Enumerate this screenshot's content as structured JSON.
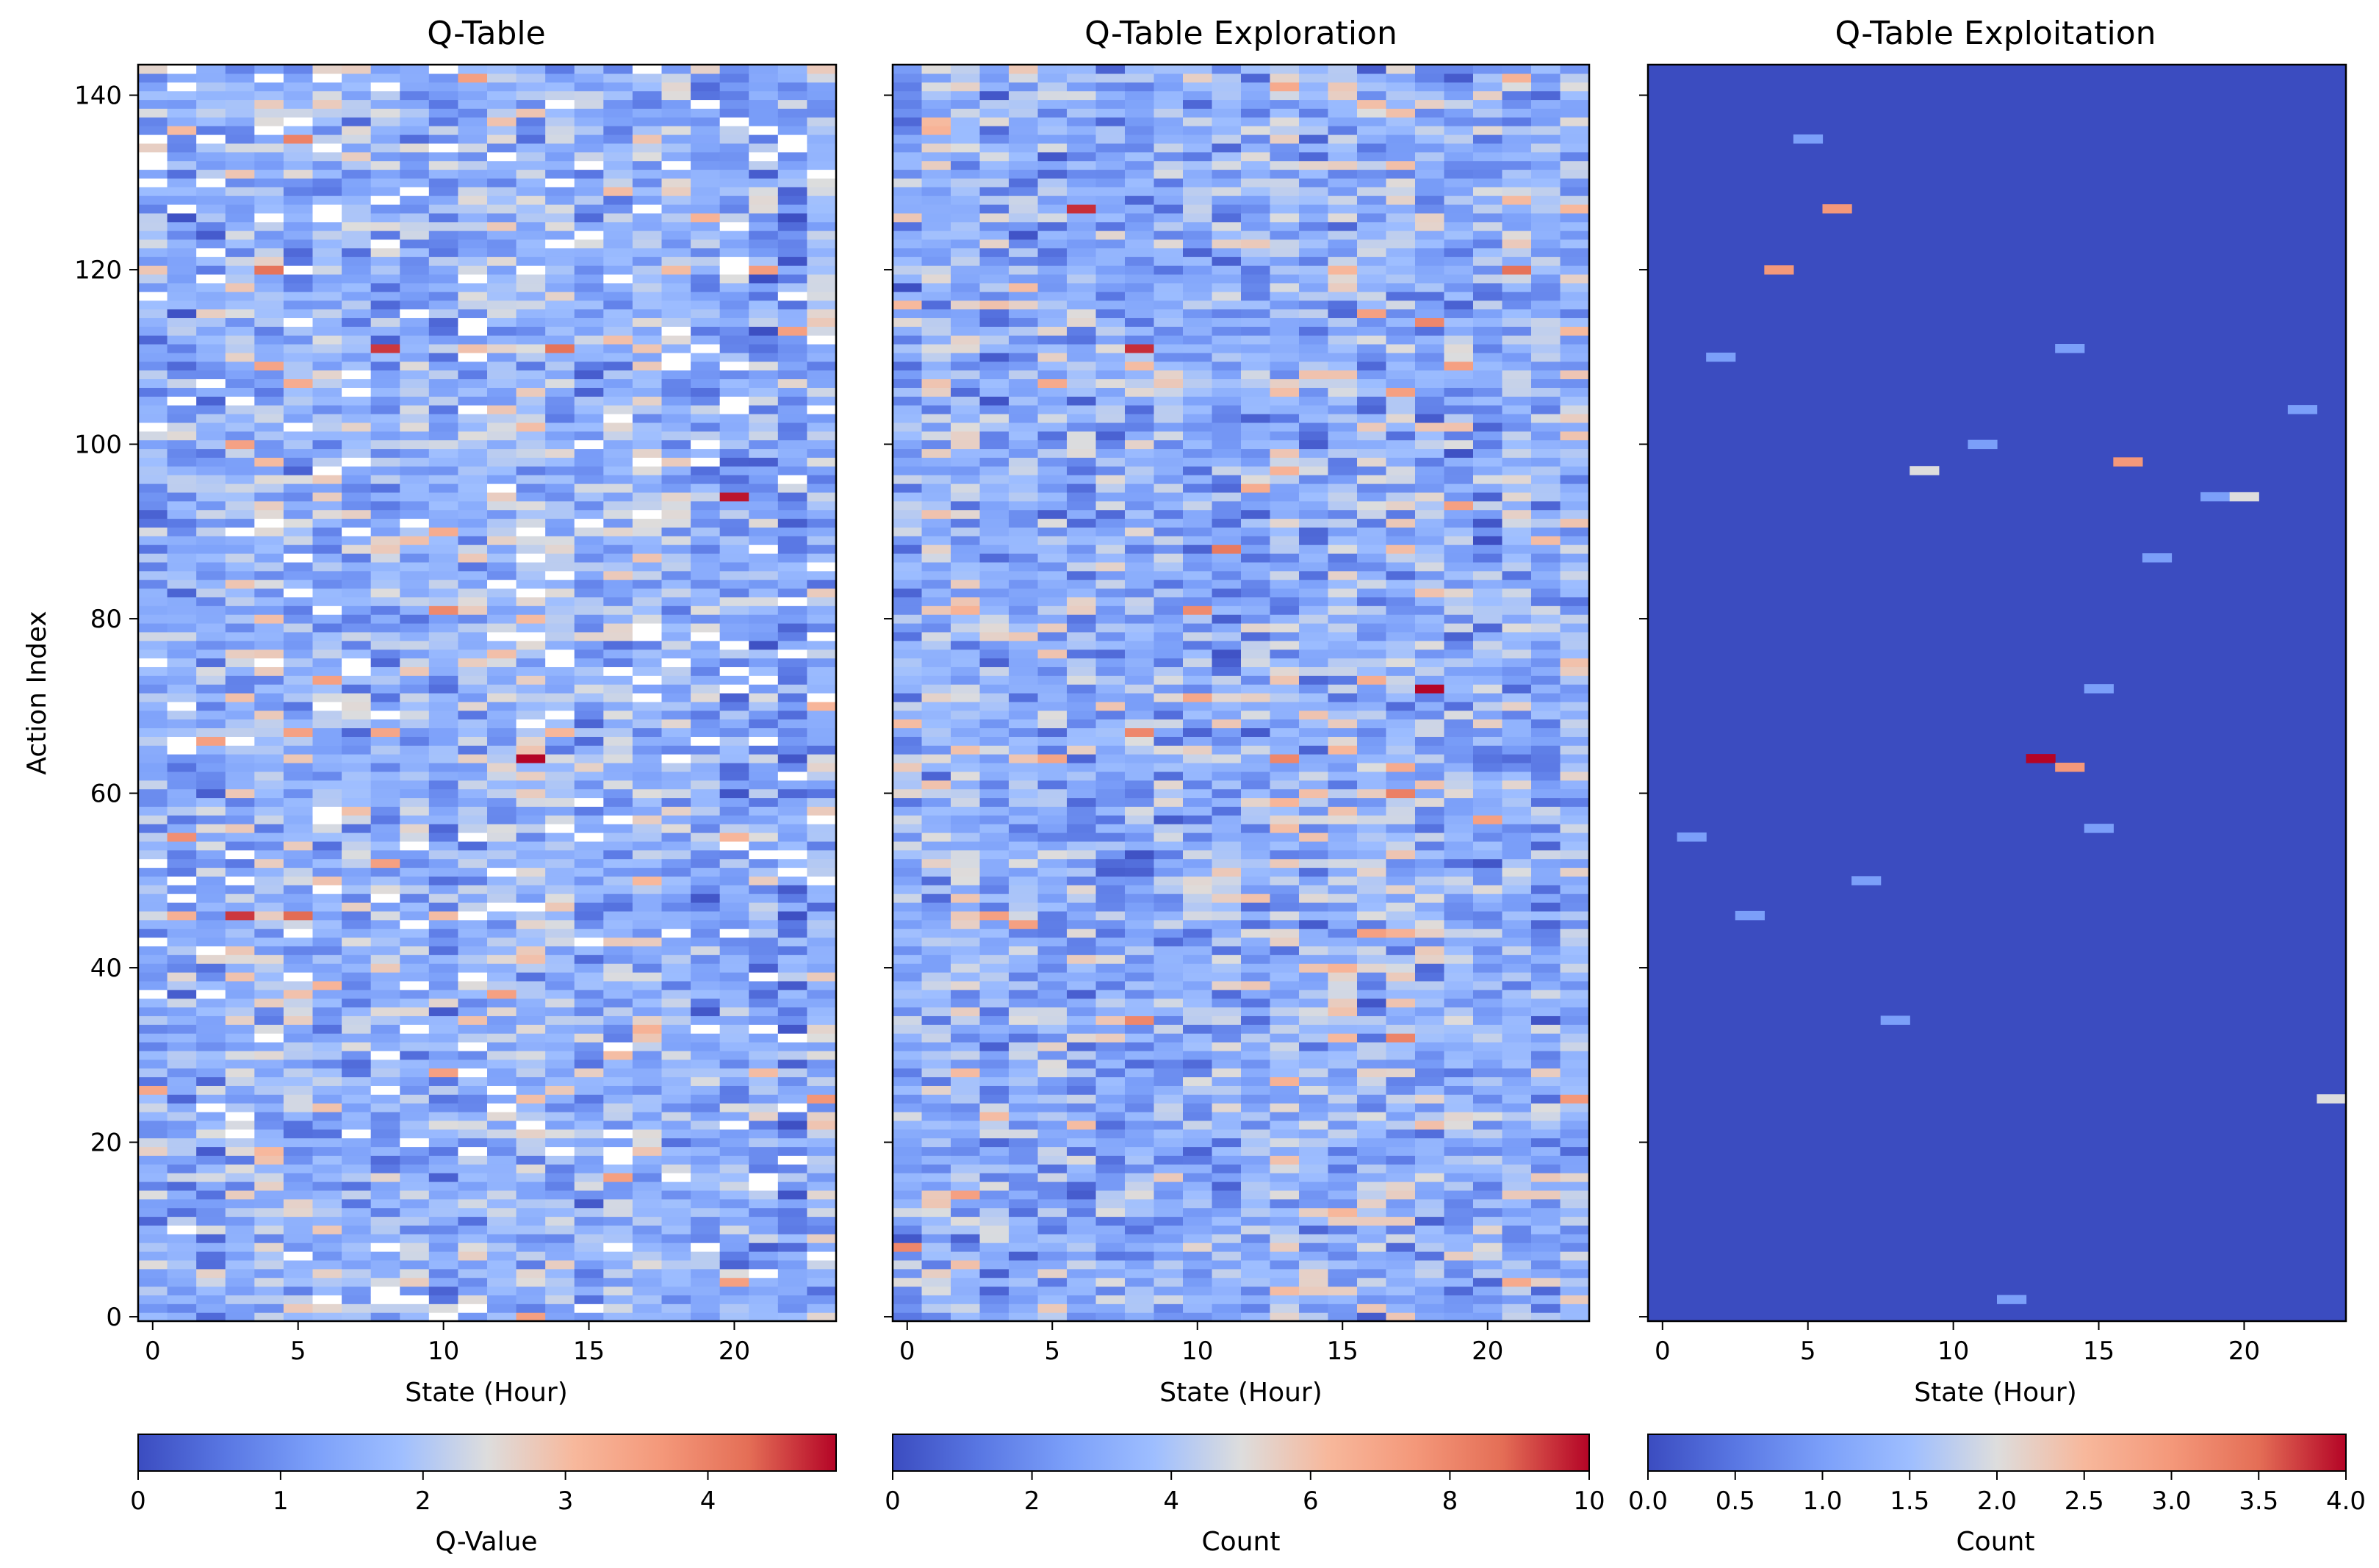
{
  "chart_data": [
    {
      "type": "heatmap",
      "title": "Q-Table",
      "xlabel": "State (Hour)",
      "ylabel": "Action Index",
      "x_range": [
        0,
        23
      ],
      "y_range": [
        0,
        143
      ],
      "xticks": [
        0,
        5,
        10,
        15,
        20
      ],
      "yticks": [
        0,
        20,
        40,
        60,
        80,
        100,
        120,
        140
      ],
      "colormap": "coolwarm",
      "colorbar": {
        "label": "Q-Value",
        "vmin": 0,
        "vmax": 4.9,
        "ticks": [
          0,
          1,
          2,
          3,
          4
        ]
      },
      "hotspots": [
        {
          "x": 13,
          "y": 64,
          "value": 4.9
        },
        {
          "x": 20,
          "y": 94,
          "value": 4.8
        },
        {
          "x": 8,
          "y": 111,
          "value": 4.6
        },
        {
          "x": 3,
          "y": 46,
          "value": 4.6
        },
        {
          "x": 5,
          "y": 46,
          "value": 4.3
        },
        {
          "x": 4,
          "y": 120,
          "value": 4.2
        },
        {
          "x": 14,
          "y": 111,
          "value": 4.2
        },
        {
          "x": 5,
          "y": 135,
          "value": 4.0
        },
        {
          "x": 10,
          "y": 81,
          "value": 3.9
        },
        {
          "x": 1,
          "y": 55,
          "value": 3.8
        },
        {
          "x": 23,
          "y": 25,
          "value": 3.7
        },
        {
          "x": 21,
          "y": 120,
          "value": 3.6
        },
        {
          "x": 3,
          "y": 100,
          "value": 3.5
        },
        {
          "x": 5,
          "y": 67,
          "value": 3.5
        },
        {
          "x": 8,
          "y": 67,
          "value": 3.4
        },
        {
          "x": 10,
          "y": 90,
          "value": 3.3
        },
        {
          "x": 5,
          "y": 107,
          "value": 3.3
        },
        {
          "x": 20,
          "y": 55,
          "value": 3.1
        },
        {
          "x": 21,
          "y": 28,
          "value": 3.0
        }
      ],
      "cmap_seed": 11,
      "cmap_base": 1.6,
      "cmap_spread": 0.85,
      "cmap_blue_columns": [
        22
      ],
      "cmap_white_rate": 0.06
    },
    {
      "type": "heatmap",
      "title": "Q-Table Exploration",
      "xlabel": "State (Hour)",
      "ylabel": "",
      "x_range": [
        0,
        23
      ],
      "y_range": [
        0,
        143
      ],
      "xticks": [
        0,
        5,
        10,
        15,
        20
      ],
      "yticks": [
        0,
        20,
        40,
        60,
        80,
        100,
        120,
        140
      ],
      "colormap": "coolwarm",
      "colorbar": {
        "label": "Count",
        "vmin": 0,
        "vmax": 10,
        "ticks": [
          0,
          2,
          4,
          6,
          8,
          10
        ]
      },
      "hotspots": [
        {
          "x": 18,
          "y": 72,
          "value": 10
        },
        {
          "x": 8,
          "y": 111,
          "value": 9.5
        },
        {
          "x": 6,
          "y": 127,
          "value": 9.5
        },
        {
          "x": 21,
          "y": 120,
          "value": 8.6
        },
        {
          "x": 13,
          "y": 64,
          "value": 8.0
        },
        {
          "x": 10,
          "y": 81,
          "value": 7.9
        },
        {
          "x": 11,
          "y": 88,
          "value": 8.4
        },
        {
          "x": 8,
          "y": 67,
          "value": 8.0
        },
        {
          "x": 17,
          "y": 60,
          "value": 8.2
        },
        {
          "x": 8,
          "y": 34,
          "value": 8.0
        },
        {
          "x": 17,
          "y": 32,
          "value": 8.1
        },
        {
          "x": 0,
          "y": 8,
          "value": 8.0
        },
        {
          "x": 23,
          "y": 25,
          "value": 7.5
        },
        {
          "x": 18,
          "y": 114,
          "value": 8.0
        },
        {
          "x": 3,
          "y": 46,
          "value": 7.2
        },
        {
          "x": 5,
          "y": 107,
          "value": 6.8
        }
      ],
      "cmap_seed": 29,
      "cmap_base": 3.2,
      "cmap_spread": 1.9,
      "cmap_blue_columns": [],
      "cmap_white_rate": 0.0
    },
    {
      "type": "heatmap",
      "title": "Q-Table Exploitation",
      "xlabel": "State (Hour)",
      "ylabel": "",
      "x_range": [
        0,
        23
      ],
      "y_range": [
        0,
        143
      ],
      "xticks": [
        0,
        5,
        10,
        15,
        20
      ],
      "yticks": [
        0,
        20,
        40,
        60,
        80,
        100,
        120,
        140
      ],
      "colormap": "coolwarm",
      "colorbar": {
        "label": "Count",
        "vmin": 0,
        "vmax": 4,
        "ticks": [
          0.0,
          0.5,
          1.0,
          1.5,
          2.0,
          2.5,
          3.0,
          3.5,
          4.0
        ]
      },
      "background_value": 0,
      "cells": [
        {
          "x": 5,
          "y": 135,
          "value": 1.0
        },
        {
          "x": 6,
          "y": 127,
          "value": 3.0
        },
        {
          "x": 4,
          "y": 120,
          "value": 3.0
        },
        {
          "x": 2,
          "y": 110,
          "value": 1.0
        },
        {
          "x": 14,
          "y": 111,
          "value": 1.0
        },
        {
          "x": 22,
          "y": 104,
          "value": 1.0
        },
        {
          "x": 11,
          "y": 100,
          "value": 1.0
        },
        {
          "x": 16,
          "y": 98,
          "value": 3.0
        },
        {
          "x": 9,
          "y": 97,
          "value": 2.0
        },
        {
          "x": 19,
          "y": 94,
          "value": 1.0
        },
        {
          "x": 20,
          "y": 94,
          "value": 2.0
        },
        {
          "x": 17,
          "y": 87,
          "value": 1.0
        },
        {
          "x": 15,
          "y": 72,
          "value": 1.0
        },
        {
          "x": 13,
          "y": 64,
          "value": 4.0
        },
        {
          "x": 14,
          "y": 63,
          "value": 3.0
        },
        {
          "x": 15,
          "y": 56,
          "value": 1.0
        },
        {
          "x": 1,
          "y": 55,
          "value": 1.0
        },
        {
          "x": 7,
          "y": 50,
          "value": 1.0
        },
        {
          "x": 3,
          "y": 46,
          "value": 1.0
        },
        {
          "x": 8,
          "y": 34,
          "value": 1.0
        },
        {
          "x": 23,
          "y": 25,
          "value": 2.0
        },
        {
          "x": 12,
          "y": 2,
          "value": 1.0
        }
      ]
    }
  ]
}
